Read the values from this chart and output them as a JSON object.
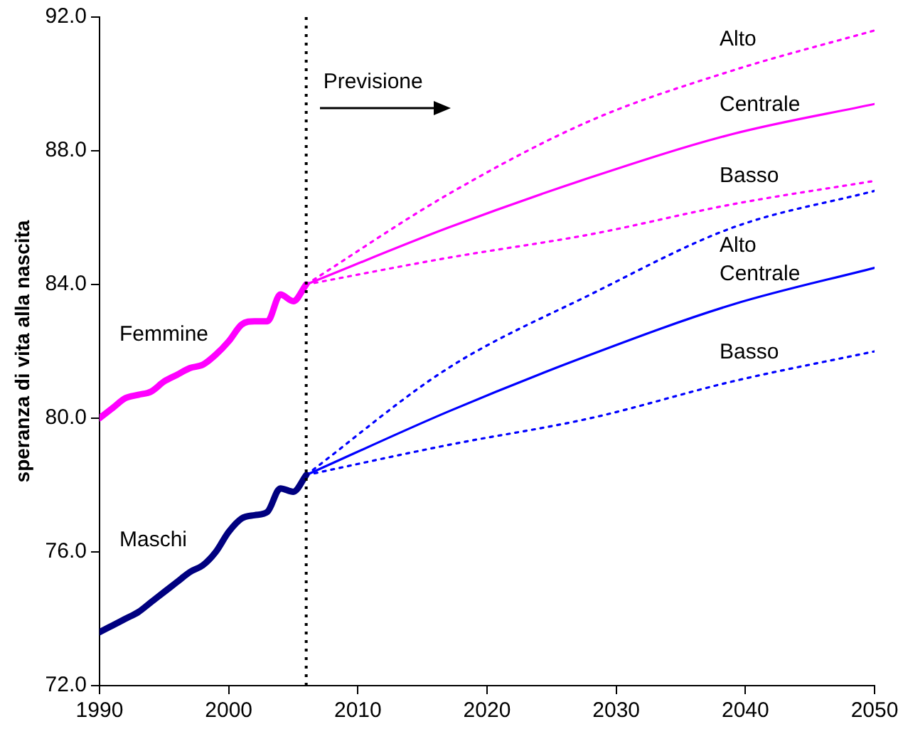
{
  "chart_data": {
    "type": "line",
    "ylabel": "speranza di vita alla nascita",
    "xlim": [
      1990,
      2050
    ],
    "xticks": [
      1990,
      2000,
      2010,
      2020,
      2030,
      2040,
      2050
    ],
    "ylim": [
      72,
      92
    ],
    "yticks": [
      {
        "value": 72,
        "label": "72.0"
      },
      {
        "value": 76,
        "label": "76.0"
      },
      {
        "value": 80,
        "label": "80.0"
      },
      {
        "value": 84,
        "label": "84.0"
      },
      {
        "value": 88,
        "label": "88.0"
      },
      {
        "value": 92,
        "label": "92.0"
      }
    ],
    "grid": false,
    "legend": false,
    "marker": "none",
    "annotations": [
      "Previsione"
    ],
    "ref_lines": [
      {
        "axis": "x",
        "value": 2006,
        "color": "#000000",
        "line_style": "dotted"
      }
    ],
    "series": [
      {
        "name": "Femmine",
        "color": "#ff00ff",
        "line_style": "solid",
        "x": [
          1990,
          1991,
          1992,
          1993,
          1994,
          1995,
          1996,
          1997,
          1998,
          1999,
          2000,
          2001,
          2002,
          2003,
          2004,
          2005,
          2006
        ],
        "values": [
          80.0,
          80.3,
          80.6,
          80.7,
          80.8,
          81.1,
          81.3,
          81.5,
          81.6,
          81.9,
          82.3,
          82.8,
          82.9,
          82.9,
          83.7,
          83.5,
          84.0
        ]
      },
      {
        "name": "Maschi",
        "color": "#000080",
        "line_style": "solid",
        "x": [
          1990,
          1991,
          1992,
          1993,
          1994,
          1995,
          1996,
          1997,
          1998,
          1999,
          2000,
          2001,
          2002,
          2003,
          2004,
          2005,
          2006
        ],
        "values": [
          73.6,
          73.8,
          74.0,
          74.2,
          74.5,
          74.8,
          75.1,
          75.4,
          75.6,
          76.0,
          76.6,
          77.0,
          77.1,
          77.2,
          77.9,
          77.8,
          78.3
        ]
      },
      {
        "name": "Alto",
        "color": "#ff00ff",
        "line_style": "dotted",
        "x": [
          2006,
          2017,
          2028,
          2039,
          2050
        ],
        "values": [
          84.0,
          86.7,
          88.9,
          90.4,
          91.6
        ]
      },
      {
        "name": "Centrale",
        "color": "#ff00ff",
        "line_style": "solid",
        "x": [
          2006,
          2017,
          2028,
          2039,
          2050
        ],
        "values": [
          84.0,
          85.7,
          87.2,
          88.5,
          89.4
        ]
      },
      {
        "name": "Basso",
        "color": "#ff00ff",
        "line_style": "dotted",
        "x": [
          2006,
          2017,
          2028,
          2039,
          2050
        ],
        "values": [
          84.0,
          84.8,
          85.5,
          86.4,
          87.1
        ]
      },
      {
        "name": "Alto",
        "color": "#0000ff",
        "line_style": "dotted",
        "x": [
          2006,
          2017,
          2028,
          2039,
          2050
        ],
        "values": [
          78.3,
          81.5,
          83.7,
          85.7,
          86.8
        ]
      },
      {
        "name": "Centrale",
        "color": "#0000ff",
        "line_style": "solid",
        "x": [
          2006,
          2017,
          2028,
          2039,
          2050
        ],
        "values": [
          78.3,
          80.2,
          81.9,
          83.4,
          84.5
        ]
      },
      {
        "name": "Basso",
        "color": "#0000ff",
        "line_style": "dotted",
        "x": [
          2006,
          2017,
          2028,
          2039,
          2050
        ],
        "values": [
          78.3,
          79.2,
          80.0,
          81.1,
          82.0
        ]
      }
    ]
  }
}
